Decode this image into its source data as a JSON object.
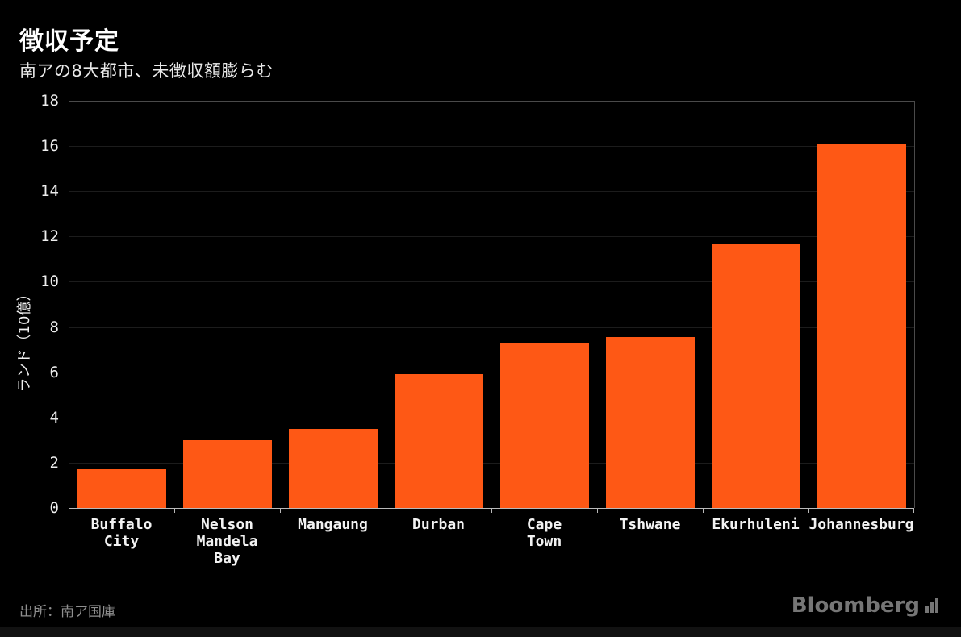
{
  "header": {
    "title": "徴収予定",
    "subtitle": "南アの8大都市、未徴収額膨らむ"
  },
  "footer": {
    "source": "出所：南ア国庫",
    "brand": "Bloomberg"
  },
  "chart_data": {
    "type": "bar",
    "title": "徴収予定",
    "subtitle": "南アの8大都市、未徴収額膨らむ",
    "categories": [
      "Buffalo\nCity",
      "Nelson\nMandela\nBay",
      "Mangaung",
      "Durban",
      "Cape\nTown",
      "Tshwane",
      "Ekurhuleni",
      "Johannesburg"
    ],
    "values": [
      1.7,
      3.0,
      3.5,
      5.9,
      7.3,
      7.55,
      11.7,
      16.1
    ],
    "xlabel": "",
    "ylabel": "ランド（10億）",
    "ylim": [
      0,
      18
    ],
    "yticks": [
      0,
      2,
      4,
      6,
      8,
      10,
      12,
      14,
      16,
      18
    ],
    "grid": "horizontal-faint",
    "legend": "none",
    "bar_color": "#fe5815",
    "background_color": "#000000"
  }
}
